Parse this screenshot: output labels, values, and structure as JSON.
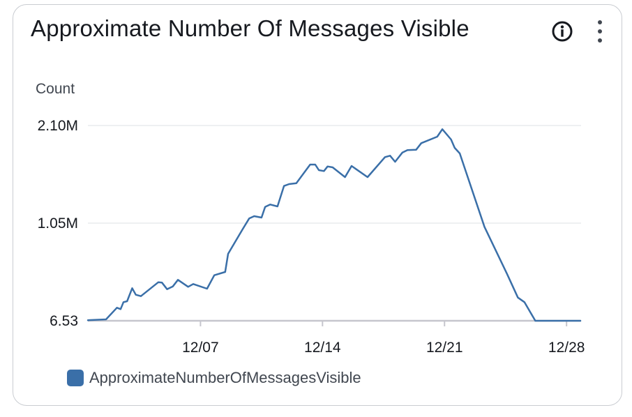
{
  "widget": {
    "title": "Approximate Number Of Messages Visible",
    "info_icon": "info-circle-icon",
    "menu_icon": "vertical-ellipsis-icon"
  },
  "chart_data": {
    "type": "line",
    "ylabel": "Count",
    "y_ticks": [
      {
        "value": 6.53,
        "label": "6.53"
      },
      {
        "value": 1050000,
        "label": "1.05M"
      },
      {
        "value": 2100000,
        "label": "2.10M"
      }
    ],
    "ylim": [
      6.53,
      2100000
    ],
    "x_ticks": [
      "12/07",
      "12/14",
      "12/21",
      "12/28"
    ],
    "x_tick_dates": [
      "2023-12-07",
      "2023-12-14",
      "2023-12-21",
      "2023-12-28"
    ],
    "xlim": [
      "2023-11-30T13:00",
      "2023-12-28T20:00"
    ],
    "grid": true,
    "legend_position": "bottom-left",
    "colors": {
      "line": "#3a6fa8",
      "grid": "#e9ebed",
      "baseline": "#c6c6cd",
      "text": "#16191f"
    },
    "series": [
      {
        "name": "ApproximateNumberOfMessagesVisible",
        "points": [
          [
            "2023-11-30T13:00",
            6000
          ],
          [
            "2023-12-01T14:00",
            15000
          ],
          [
            "2023-12-02T05:00",
            140000
          ],
          [
            "2023-12-02T10:00",
            125000
          ],
          [
            "2023-12-02T14:00",
            200000
          ],
          [
            "2023-12-02T19:00",
            210000
          ],
          [
            "2023-12-03T02:00",
            350000
          ],
          [
            "2023-12-03T07:00",
            280000
          ],
          [
            "2023-12-03T14:00",
            265000
          ],
          [
            "2023-12-04T14:00",
            415000
          ],
          [
            "2023-12-04T19:00",
            410000
          ],
          [
            "2023-12-05T02:00",
            340000
          ],
          [
            "2023-12-05T10:00",
            370000
          ],
          [
            "2023-12-05T17:00",
            440000
          ],
          [
            "2023-12-06T07:00",
            365000
          ],
          [
            "2023-12-06T14:00",
            395000
          ],
          [
            "2023-12-07T09:00",
            345000
          ],
          [
            "2023-12-07T19:00",
            490000
          ],
          [
            "2023-12-08T10:00",
            525000
          ],
          [
            "2023-12-08T14:00",
            720000
          ],
          [
            "2023-12-09T10:00",
            985000
          ],
          [
            "2023-12-09T19:00",
            1100000
          ],
          [
            "2023-12-10T02:00",
            1125000
          ],
          [
            "2023-12-10T12:00",
            1110000
          ],
          [
            "2023-12-10T17:00",
            1225000
          ],
          [
            "2023-12-11T00:00",
            1250000
          ],
          [
            "2023-12-11T10:00",
            1230000
          ],
          [
            "2023-12-11T19:00",
            1450000
          ],
          [
            "2023-12-12T02:00",
            1470000
          ],
          [
            "2023-12-12T12:00",
            1480000
          ],
          [
            "2023-12-13T07:00",
            1680000
          ],
          [
            "2023-12-13T14:00",
            1680000
          ],
          [
            "2023-12-13T19:00",
            1620000
          ],
          [
            "2023-12-14T02:00",
            1610000
          ],
          [
            "2023-12-14T07:00",
            1660000
          ],
          [
            "2023-12-14T14:00",
            1650000
          ],
          [
            "2023-12-15T07:00",
            1545000
          ],
          [
            "2023-12-15T16:00",
            1665000
          ],
          [
            "2023-12-16T14:00",
            1545000
          ],
          [
            "2023-12-17T14:00",
            1760000
          ],
          [
            "2023-12-17T21:00",
            1775000
          ],
          [
            "2023-12-18T04:00",
            1710000
          ],
          [
            "2023-12-18T14:00",
            1810000
          ],
          [
            "2023-12-18T21:00",
            1835000
          ],
          [
            "2023-12-19T09:00",
            1840000
          ],
          [
            "2023-12-19T16:00",
            1910000
          ],
          [
            "2023-12-20T14:00",
            1980000
          ],
          [
            "2023-12-20T21:00",
            2060000
          ],
          [
            "2023-12-21T09:00",
            1950000
          ],
          [
            "2023-12-21T14:00",
            1860000
          ],
          [
            "2023-12-21T21:00",
            1800000
          ],
          [
            "2023-12-23T07:00",
            1010000
          ],
          [
            "2023-12-24T14:00",
            505000
          ],
          [
            "2023-12-25T05:00",
            250000
          ],
          [
            "2023-12-25T14:00",
            200000
          ],
          [
            "2023-12-26T05:00",
            6.53
          ],
          [
            "2023-12-28T19:00",
            6.53
          ]
        ]
      }
    ]
  }
}
